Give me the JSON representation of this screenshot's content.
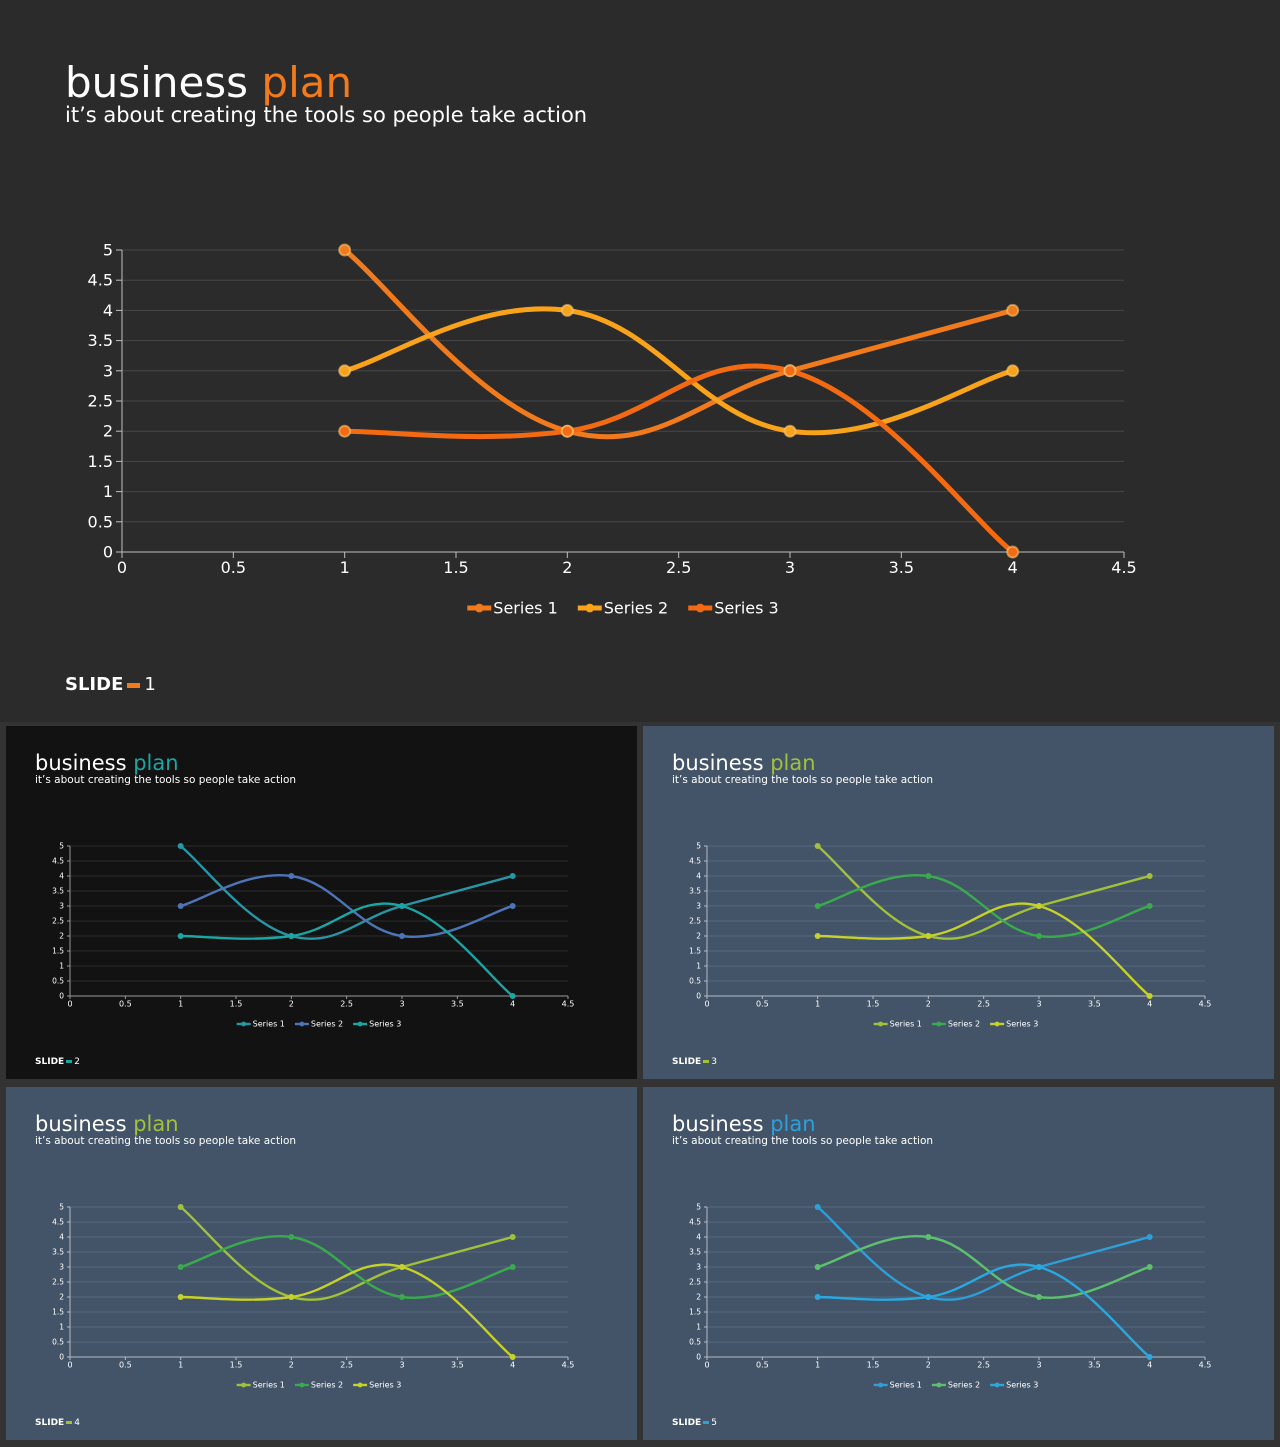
{
  "chart_data": [
    {
      "slide_number": "1",
      "slide_label": "SLIDE",
      "title": "business",
      "title_accent": "plan",
      "subtitle": "it’s about creating the tools so people take action",
      "type": "line",
      "smooth": true,
      "markers": true,
      "grid": true,
      "legend": "bottom",
      "xlim": [
        0,
        4.5
      ],
      "ylim": [
        0,
        5
      ],
      "xticks": [
        "0",
        "0.5",
        "1",
        "1.5",
        "2",
        "2.5",
        "3",
        "3.5",
        "4",
        "4.5"
      ],
      "yticks": [
        "0",
        "0.5",
        "1",
        "1.5",
        "2",
        "2.5",
        "3",
        "3.5",
        "4",
        "4.5",
        "5"
      ],
      "x": [
        1,
        2,
        3,
        4
      ],
      "series": [
        {
          "name": "Series 1",
          "values": [
            5,
            2,
            3,
            4
          ],
          "color": "#f07a1c"
        },
        {
          "name": "Series 2",
          "values": [
            3,
            4,
            2,
            3
          ],
          "color": "#f9a21b"
        },
        {
          "name": "Series 3",
          "values": [
            2,
            2,
            3,
            0
          ],
          "color": "#f36a12"
        }
      ],
      "colors": {
        "background": "#2b2b2b",
        "title": "#ffffff",
        "accent": "#f07a1c",
        "axis": "#bfbfbf",
        "grid": "#474747",
        "text": "#ffffff"
      }
    },
    {
      "slide_number": "2",
      "slide_label": "SLIDE",
      "title": "business",
      "title_accent": "plan",
      "subtitle": "it’s about creating the tools so people take action",
      "type": "line",
      "smooth": true,
      "markers": true,
      "grid": true,
      "legend": "bottom",
      "xlim": [
        0,
        4.5
      ],
      "ylim": [
        0,
        5
      ],
      "xticks": [
        "0",
        "0.5",
        "1",
        "1.5",
        "2",
        "2.5",
        "3",
        "3.5",
        "4",
        "4.5"
      ],
      "yticks": [
        "0",
        "0.5",
        "1",
        "1.5",
        "2",
        "2.5",
        "3",
        "3.5",
        "4",
        "4.5",
        "5"
      ],
      "x": [
        1,
        2,
        3,
        4
      ],
      "series": [
        {
          "name": "Series 1",
          "values": [
            5,
            2,
            3,
            4
          ],
          "color": "#2796a6"
        },
        {
          "name": "Series 2",
          "values": [
            3,
            4,
            2,
            3
          ],
          "color": "#4e74b8"
        },
        {
          "name": "Series 3",
          "values": [
            2,
            2,
            3,
            0
          ],
          "color": "#1aa6a3"
        }
      ],
      "colors": {
        "background": "#121212",
        "title": "#ffffff",
        "accent": "#1aa6a3",
        "axis": "#9a9a9a",
        "grid": "#2c2c2c",
        "text": "#ffffff"
      }
    },
    {
      "slide_number": "3",
      "slide_label": "SLIDE",
      "title": "business",
      "title_accent": "plan",
      "subtitle": "it’s about creating the tools so people take action",
      "type": "line",
      "smooth": true,
      "markers": true,
      "grid": true,
      "legend": "bottom",
      "xlim": [
        0,
        4.5
      ],
      "ylim": [
        0,
        5
      ],
      "xticks": [
        "0",
        "0.5",
        "1",
        "1.5",
        "2",
        "2.5",
        "3",
        "3.5",
        "4",
        "4.5"
      ],
      "yticks": [
        "0",
        "0.5",
        "1",
        "1.5",
        "2",
        "2.5",
        "3",
        "3.5",
        "4",
        "4.5",
        "5"
      ],
      "x": [
        1,
        2,
        3,
        4
      ],
      "series": [
        {
          "name": "Series 1",
          "values": [
            5,
            2,
            3,
            4
          ],
          "color": "#a2c13a"
        },
        {
          "name": "Series 2",
          "values": [
            3,
            4,
            2,
            3
          ],
          "color": "#3aaa4e"
        },
        {
          "name": "Series 3",
          "values": [
            2,
            2,
            3,
            0
          ],
          "color": "#c6d12a"
        }
      ],
      "colors": {
        "background": "#435468",
        "title": "#ffffff",
        "accent": "#a2c13a",
        "axis": "#b4bcc6",
        "grid": "#56677b",
        "text": "#ffffff"
      }
    },
    {
      "slide_number": "4",
      "slide_label": "SLIDE",
      "title": "business",
      "title_accent": "plan",
      "subtitle": "it’s about creating the tools so people take action",
      "type": "line",
      "smooth": true,
      "markers": true,
      "grid": true,
      "legend": "bottom",
      "xlim": [
        0,
        4.5
      ],
      "ylim": [
        0,
        5
      ],
      "xticks": [
        "0",
        "0.5",
        "1",
        "1.5",
        "2",
        "2.5",
        "3",
        "3.5",
        "4",
        "4.5"
      ],
      "yticks": [
        "0",
        "0.5",
        "1",
        "1.5",
        "2",
        "2.5",
        "3",
        "3.5",
        "4",
        "4.5",
        "5"
      ],
      "x": [
        1,
        2,
        3,
        4
      ],
      "series": [
        {
          "name": "Series 1",
          "values": [
            5,
            2,
            3,
            4
          ],
          "color": "#a2c13a"
        },
        {
          "name": "Series 2",
          "values": [
            3,
            4,
            2,
            3
          ],
          "color": "#3aaa4e"
        },
        {
          "name": "Series 3",
          "values": [
            2,
            2,
            3,
            0
          ],
          "color": "#c6d12a"
        }
      ],
      "colors": {
        "background": "#435468",
        "title": "#ffffff",
        "accent": "#a2c13a",
        "axis": "#b4bcc6",
        "grid": "#56677b",
        "text": "#ffffff"
      }
    },
    {
      "slide_number": "5",
      "slide_label": "SLIDE",
      "title": "business",
      "title_accent": "plan",
      "subtitle": "it’s about creating the tools so people take action",
      "type": "line",
      "smooth": true,
      "markers": true,
      "grid": true,
      "legend": "bottom",
      "xlim": [
        0,
        4.5
      ],
      "ylim": [
        0,
        5
      ],
      "xticks": [
        "0",
        "0.5",
        "1",
        "1.5",
        "2",
        "2.5",
        "3",
        "3.5",
        "4",
        "4.5"
      ],
      "yticks": [
        "0",
        "0.5",
        "1",
        "1.5",
        "2",
        "2.5",
        "3",
        "3.5",
        "4",
        "4.5",
        "5"
      ],
      "x": [
        1,
        2,
        3,
        4
      ],
      "series": [
        {
          "name": "Series 1",
          "values": [
            5,
            2,
            3,
            4
          ],
          "color": "#2e9fd8"
        },
        {
          "name": "Series 2",
          "values": [
            3,
            4,
            2,
            3
          ],
          "color": "#5ec06e"
        },
        {
          "name": "Series 3",
          "values": [
            2,
            2,
            3,
            0
          ],
          "color": "#2aa8e0"
        }
      ],
      "colors": {
        "background": "#435468",
        "title": "#ffffff",
        "accent": "#2e9fd8",
        "axis": "#b4bcc6",
        "grid": "#56677b",
        "text": "#ffffff"
      }
    }
  ]
}
